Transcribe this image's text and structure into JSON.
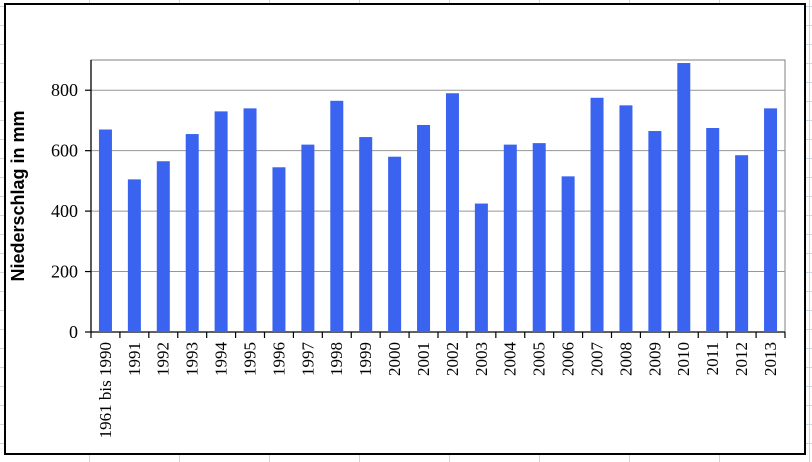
{
  "chart_data": {
    "type": "bar",
    "title": "",
    "ylabel": "Niederschlag in mm",
    "xlabel": "",
    "ylim": [
      0,
      900
    ],
    "yticks": [
      0,
      200,
      400,
      600,
      800
    ],
    "grid": true,
    "legend": false,
    "x_label_rotation": -90,
    "categories": [
      "1961 bis 1990",
      "1991",
      "1992",
      "1993",
      "1994",
      "1995",
      "1996",
      "1997",
      "1998",
      "1999",
      "2000",
      "2001",
      "2002",
      "2003",
      "2004",
      "2005",
      "2006",
      "2007",
      "2008",
      "2009",
      "2010",
      "2011",
      "2012",
      "2013"
    ],
    "values": [
      670,
      505,
      565,
      655,
      730,
      740,
      545,
      620,
      765,
      645,
      580,
      685,
      790,
      425,
      620,
      625,
      515,
      775,
      750,
      665,
      890,
      675,
      585,
      740
    ],
    "colors": {
      "bar": "#3a63f0",
      "grid_line": "#969696",
      "axis_line": "#000000",
      "plot_border": "#808080",
      "frame_border": "#000000",
      "sheet_grid_line": "#ccd7e3",
      "background": "#ffffff"
    }
  }
}
